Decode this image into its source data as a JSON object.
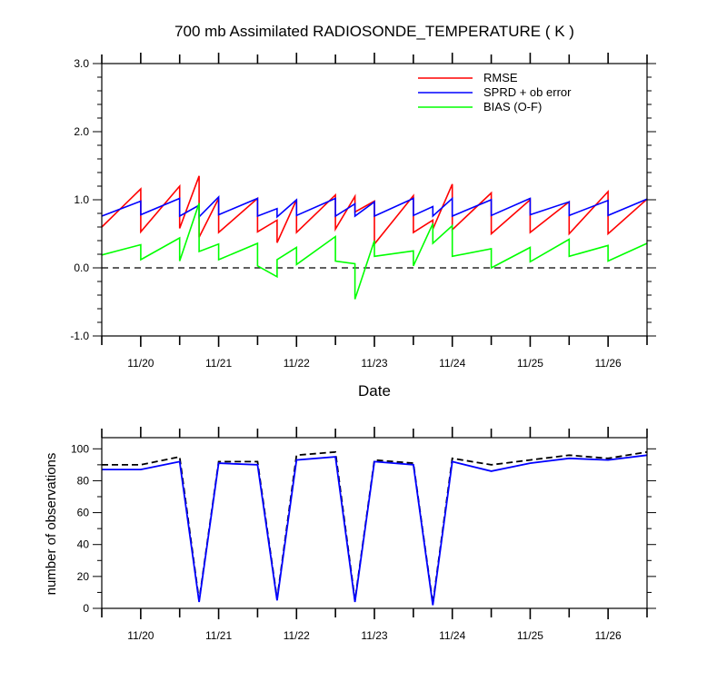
{
  "chart_data": [
    {
      "type": "line",
      "title": "700 mb Assimilated RADIOSONDE_TEMPERATURE ( K )",
      "xlabel": "Date",
      "ylabel": "",
      "ylim": [
        -1.0,
        3.0
      ],
      "yticks": [
        -1.0,
        0.0,
        1.0,
        2.0,
        3.0
      ],
      "ytick_labels": [
        "-1.0",
        "0.0",
        "1.0",
        "2.0",
        "3.0"
      ],
      "xlim": [
        19.5,
        26.5
      ],
      "xticks": [
        20,
        21,
        22,
        23,
        24,
        25,
        26
      ],
      "xtick_labels": [
        "11/20",
        "11/21",
        "11/22",
        "11/23",
        "11/24",
        "11/25",
        "11/26"
      ],
      "zero_line": {
        "y": 0.0,
        "style": "dashed"
      },
      "legend_position": "top-right",
      "series": [
        {
          "name": "RMSE",
          "color": "#ff0000",
          "x": [
            19.5,
            20.0,
            20.0,
            20.5,
            20.5,
            20.75,
            20.75,
            21.0,
            21.0,
            21.5,
            21.5,
            21.75,
            21.75,
            22.0,
            22.0,
            22.5,
            22.5,
            22.75,
            22.75,
            23.0,
            23.0,
            23.5,
            23.5,
            23.75,
            23.75,
            24.0,
            24.0,
            24.5,
            24.5,
            25.0,
            25.0,
            25.5,
            25.5,
            26.0,
            26.0,
            26.5
          ],
          "y": [
            0.6,
            1.16,
            0.53,
            1.2,
            0.58,
            1.35,
            0.45,
            1.02,
            0.52,
            1.02,
            0.53,
            0.7,
            0.37,
            1.0,
            0.52,
            1.07,
            0.57,
            1.05,
            0.82,
            0.98,
            0.35,
            1.06,
            0.52,
            0.7,
            0.57,
            1.23,
            0.56,
            1.1,
            0.5,
            1.0,
            0.52,
            0.97,
            0.5,
            1.12,
            0.5,
            1.01
          ]
        },
        {
          "name": "SPRD + ob error",
          "color": "#0000ff",
          "x": [
            19.5,
            20.0,
            20.0,
            20.5,
            20.5,
            20.75,
            20.75,
            21.0,
            21.0,
            21.5,
            21.5,
            21.75,
            21.75,
            22.0,
            22.0,
            22.5,
            22.5,
            22.75,
            22.75,
            23.0,
            23.0,
            23.5,
            23.5,
            23.75,
            23.75,
            24.0,
            24.0,
            24.5,
            24.5,
            25.0,
            25.0,
            25.5,
            25.5,
            26.0,
            26.0,
            26.5
          ],
          "y": [
            0.76,
            0.98,
            0.78,
            1.02,
            0.76,
            0.92,
            0.75,
            1.04,
            0.78,
            1.02,
            0.76,
            0.87,
            0.75,
            1.0,
            0.77,
            1.02,
            0.76,
            0.94,
            0.76,
            0.97,
            0.76,
            1.02,
            0.77,
            0.9,
            0.76,
            1.02,
            0.76,
            1.0,
            0.77,
            1.02,
            0.78,
            0.97,
            0.77,
            0.99,
            0.77,
            1.01
          ]
        },
        {
          "name": "BIAS (O-F)",
          "color": "#00ff00",
          "x": [
            19.5,
            20.0,
            20.0,
            20.5,
            20.5,
            20.75,
            20.75,
            21.0,
            21.0,
            21.5,
            21.5,
            21.75,
            21.75,
            22.0,
            22.0,
            22.5,
            22.5,
            22.75,
            22.75,
            23.0,
            23.0,
            23.5,
            23.5,
            23.75,
            23.75,
            24.0,
            24.0,
            24.5,
            24.5,
            25.0,
            25.0,
            25.5,
            25.5,
            26.0,
            26.0,
            26.5
          ],
          "y": [
            0.19,
            0.34,
            0.12,
            0.44,
            0.1,
            0.95,
            0.24,
            0.35,
            0.12,
            0.36,
            0.03,
            -0.13,
            0.12,
            0.3,
            0.05,
            0.46,
            0.1,
            0.06,
            -0.46,
            0.4,
            0.17,
            0.25,
            0.03,
            0.65,
            0.36,
            0.62,
            0.17,
            0.28,
            0.0,
            0.3,
            0.09,
            0.42,
            0.17,
            0.33,
            0.1,
            0.36
          ]
        }
      ]
    },
    {
      "type": "line",
      "title": "",
      "xlabel": "",
      "ylabel": "number of observations",
      "ylim": [
        0,
        107
      ],
      "yticks": [
        0,
        20,
        40,
        60,
        80,
        100
      ],
      "ytick_labels": [
        "0",
        "20",
        "40",
        "60",
        "80",
        "100"
      ],
      "xlim": [
        19.5,
        26.5
      ],
      "xticks": [
        20,
        21,
        22,
        23,
        24,
        25,
        26
      ],
      "xtick_labels": [
        "11/20",
        "11/21",
        "11/22",
        "11/23",
        "11/24",
        "11/25",
        "11/26"
      ],
      "series": [
        {
          "name": "",
          "color": "#000000",
          "style": "dashed",
          "x": [
            19.5,
            20.0,
            20.5,
            20.75,
            21.0,
            21.5,
            21.75,
            22.0,
            22.5,
            22.75,
            23.0,
            23.5,
            23.75,
            24.0,
            24.5,
            25.0,
            25.5,
            26.0,
            26.5
          ],
          "y": [
            90,
            90,
            95,
            5,
            92,
            92,
            6,
            96,
            98,
            5,
            93,
            91,
            3,
            94,
            90,
            93,
            96,
            94,
            98
          ]
        },
        {
          "name": "",
          "color": "#0000ff",
          "style": "solid",
          "x": [
            19.5,
            20.0,
            20.5,
            20.75,
            21.0,
            21.5,
            21.75,
            22.0,
            22.5,
            22.75,
            23.0,
            23.5,
            23.75,
            24.0,
            24.5,
            25.0,
            25.5,
            26.0,
            26.5
          ],
          "y": [
            87,
            87,
            92,
            4,
            91,
            90,
            5,
            93,
            95,
            4,
            92,
            90,
            2,
            92,
            86,
            91,
            94,
            93,
            96
          ]
        }
      ]
    }
  ]
}
